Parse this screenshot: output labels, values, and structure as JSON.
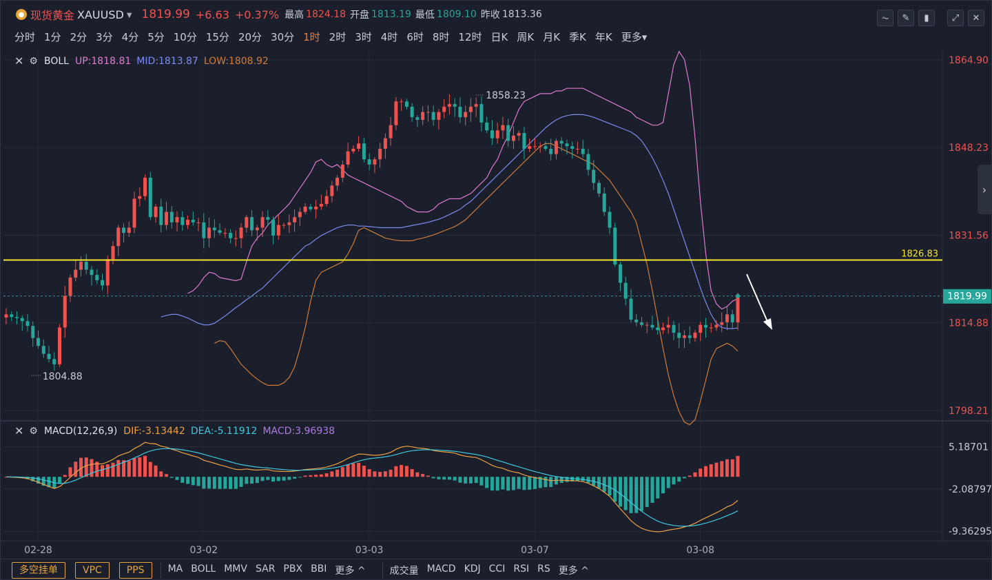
{
  "header": {
    "coin_icon": "gold-coin-icon",
    "name": "现货黄金",
    "symbol": "XAUUSD",
    "price": "1819.99",
    "change": "+6.63",
    "change_pct": "+0.37%",
    "high_label": "最高",
    "high": "1824.18",
    "open_label": "开盘",
    "open": "1813.19",
    "low_label": "最低",
    "low": "1809.10",
    "prev_label": "昨收",
    "prev": "1813.36"
  },
  "toolbar_icons": [
    "line-chart-icon",
    "draw-pen-icon",
    "candlestick-icon",
    "expand-icon",
    "close-icon"
  ],
  "periods": [
    "分时",
    "1分",
    "2分",
    "3分",
    "4分",
    "5分",
    "10分",
    "15分",
    "20分",
    "30分",
    "1时",
    "2时",
    "3时",
    "4时",
    "6时",
    "8时",
    "12时",
    "日K",
    "周K",
    "月K",
    "季K",
    "年K",
    "更多"
  ],
  "active_period": "1时",
  "boll": {
    "name": "BOLL",
    "up": "UP:1818.81",
    "mid": "MID:1813.87",
    "low": "LOW:1808.92"
  },
  "macd": {
    "name": "MACD(12,26,9)",
    "dif": "DIF:-3.13442",
    "dea": "DEA:-5.11912",
    "macd": "MACD:3.96938"
  },
  "colors": {
    "up": "#ef5350",
    "down": "#26a69a",
    "boll_up": "#e07ad0",
    "boll_mid": "#7b8cf0",
    "boll_low": "#d07b3a",
    "level_line": "#f5e52c",
    "dif": "#f0a040",
    "dea": "#40c8e0"
  },
  "bottom": {
    "buttons": [
      "多空挂单",
      "VPC",
      "PPS"
    ],
    "main_indicators": [
      "MA",
      "BOLL",
      "MMV",
      "SAR",
      "PBX",
      "BBI",
      "更多 ^"
    ],
    "sub_indicators": [
      "成交量",
      "MACD",
      "KDJ",
      "CCI",
      "RSI",
      "RS",
      "更多 ^"
    ]
  },
  "chart_data": {
    "type": "candlestick",
    "price_axis": {
      "ticks": [
        "1864.90",
        "1848.23",
        "1831.56",
        "1814.88",
        "1798.21"
      ],
      "min": 1798.21,
      "max": 1864.9
    },
    "macd_axis": {
      "ticks": [
        "5.18701",
        "-2.08797",
        "-9.36295"
      ]
    },
    "x_labels": [
      {
        "label": "02-28",
        "i": 6
      },
      {
        "label": "03-02",
        "i": 37
      },
      {
        "label": "03-03",
        "i": 68
      },
      {
        "label": "03-07",
        "i": 99
      },
      {
        "label": "03-08",
        "i": 130
      }
    ],
    "level_line": {
      "value": 1826.83,
      "label": "1826.83"
    },
    "current_price": {
      "value": 1819.99,
      "label": "1819.99"
    },
    "high_mark": {
      "value": 1858.23,
      "label": "1858.23",
      "i": 88
    },
    "low_mark": {
      "value": 1804.88,
      "label": "1804.88",
      "i": 5
    },
    "closes": [
      1816.5,
      1816.0,
      1815.8,
      1815.2,
      1814.3,
      1812.0,
      1810.5,
      1809.0,
      1808.0,
      1807.0,
      1814.0,
      1820.0,
      1823.5,
      1825.0,
      1826.5,
      1825.0,
      1824.0,
      1823.0,
      1822.0,
      1827.0,
      1829.5,
      1833.0,
      1832.0,
      1833.0,
      1838.5,
      1839.0,
      1842.5,
      1835.0,
      1837.0,
      1833.5,
      1836.0,
      1834.0,
      1835.0,
      1833.5,
      1834.5,
      1834.0,
      1834.0,
      1831.0,
      1833.0,
      1832.5,
      1832.0,
      1832.0,
      1831.0,
      1831.0,
      1833.0,
      1835.0,
      1832.5,
      1833.0,
      1835.0,
      1834.5,
      1831.5,
      1833.5,
      1833.5,
      1834.0,
      1835.0,
      1836.0,
      1837.0,
      1836.5,
      1837.0,
      1837.5,
      1839.0,
      1841.0,
      1842.5,
      1845.0,
      1847.5,
      1848.0,
      1849.0,
      1846.0,
      1845.0,
      1846.0,
      1848.0,
      1850.0,
      1852.5,
      1857.0,
      1857.0,
      1856.0,
      1854.0,
      1853.5,
      1855.0,
      1855.0,
      1853.5,
      1855.0,
      1856.0,
      1856.5,
      1856.0,
      1854.0,
      1855.0,
      1856.0,
      1856.5,
      1853.0,
      1851.5,
      1850.0,
      1851.5,
      1852.5,
      1849.5,
      1850.5,
      1851.0,
      1848.0,
      1848.5,
      1848.5,
      1848.5,
      1848.0,
      1847.0,
      1849.5,
      1849.0,
      1848.5,
      1848.0,
      1848.0,
      1847.0,
      1844.0,
      1841.5,
      1839.5,
      1836.0,
      1833.0,
      1826.0,
      1822.5,
      1819.5,
      1815.5,
      1815.0,
      1814.5,
      1814.5,
      1814.0,
      1813.5,
      1814.0,
      1814.5,
      1813.0,
      1812.0,
      1812.5,
      1812.0,
      1813.0,
      1814.5,
      1814.0,
      1814.0,
      1814.5,
      1815.0,
      1816.5,
      1815.0,
      1819.99
    ],
    "boll_up": [
      1820.5,
      1821.0,
      1822.0,
      1823.5,
      1824.5,
      1824.3,
      1823.5,
      1823.3,
      1823.1,
      1822.9,
      1823.2,
      1826.5,
      1829.5,
      1831.0,
      1832.0,
      1833.5,
      1834.5,
      1835.5,
      1836.5,
      1837.5,
      1839.0,
      1840.5,
      1842.0,
      1843.5,
      1845.5,
      1846.0,
      1845.0,
      1844.5,
      1845.0,
      1844.0,
      1843.0,
      1842.5,
      1842.0,
      1841.5,
      1841.0,
      1840.5,
      1840.0,
      1839.5,
      1839.0,
      1838.5,
      1838.0,
      1837.0,
      1836.5,
      1836.0,
      1836.0,
      1836.0,
      1836.5,
      1837.5,
      1838.0,
      1838.5,
      1838.5,
      1838.5,
      1839.0,
      1839.5,
      1840.5,
      1841.5,
      1842.5,
      1844.5,
      1846.0,
      1848.5,
      1850.5,
      1853.0,
      1855.5,
      1857.0,
      1857.5,
      1858.0,
      1858.5,
      1858.5,
      1858.5,
      1859.0,
      1859.0,
      1859.5,
      1859.5,
      1859.5,
      1859.5,
      1859.0,
      1858.5,
      1858.0,
      1857.5,
      1857.0,
      1856.5,
      1856.0,
      1855.5,
      1855.0,
      1854.0,
      1853.5,
      1853.0,
      1852.5,
      1852.5,
      1853.0,
      1858.5,
      1864.0,
      1866.5,
      1865.0,
      1860.0,
      1850.0,
      1838.0,
      1828.0,
      1821.0,
      1818.5,
      1817.5,
      1818.0,
      1819.0,
      1819.5
    ],
    "boll_mid": [
      1816.0,
      1816.3,
      1816.5,
      1816.5,
      1816.2,
      1815.8,
      1815.3,
      1814.8,
      1814.5,
      1814.5,
      1814.8,
      1815.5,
      1816.2,
      1817.0,
      1817.8,
      1818.5,
      1819.3,
      1820.0,
      1820.8,
      1821.5,
      1822.5,
      1823.5,
      1824.5,
      1825.5,
      1826.5,
      1827.5,
      1828.5,
      1829.5,
      1830.0,
      1830.8,
      1831.5,
      1832.0,
      1832.5,
      1833.0,
      1833.3,
      1833.5,
      1833.5,
      1833.3,
      1833.3,
      1833.2,
      1833.1,
      1833.0,
      1833.0,
      1833.0,
      1833.0,
      1833.0,
      1833.2,
      1833.4,
      1833.6,
      1833.8,
      1834.0,
      1834.3,
      1834.6,
      1835.0,
      1835.5,
      1836.0,
      1836.5,
      1837.3,
      1838.0,
      1839.0,
      1840.0,
      1841.0,
      1842.0,
      1843.0,
      1844.0,
      1845.0,
      1846.0,
      1847.0,
      1848.0,
      1849.0,
      1850.0,
      1851.0,
      1852.0,
      1852.8,
      1853.5,
      1854.0,
      1854.3,
      1854.5,
      1854.5,
      1854.5,
      1854.3,
      1854.0,
      1853.6,
      1853.2,
      1852.8,
      1852.4,
      1852.0,
      1851.6,
      1851.2,
      1850.5,
      1849.5,
      1848.0,
      1846.3,
      1844.3,
      1842.0,
      1839.5,
      1836.5,
      1833.5,
      1830.5,
      1827.5,
      1824.5,
      1821.5,
      1818.8,
      1816.5,
      1814.8,
      1814.0,
      1813.8,
      1813.8,
      1813.9
    ],
    "boll_low": [
      1811.0,
      1811.5,
      1811.3,
      1810.0,
      1808.5,
      1807.0,
      1806.0,
      1805.0,
      1804.2,
      1803.5,
      1803.0,
      1803.0,
      1803.0,
      1803.5,
      1804.5,
      1806.5,
      1810.0,
      1814.0,
      1819.0,
      1823.0,
      1824.5,
      1825.0,
      1825.5,
      1826.0,
      1826.5,
      1828.0,
      1830.0,
      1832.5,
      1833.0,
      1832.5,
      1832.0,
      1831.5,
      1831.0,
      1830.8,
      1830.6,
      1830.5,
      1830.5,
      1830.5,
      1830.8,
      1831.0,
      1831.3,
      1831.6,
      1832.0,
      1832.4,
      1832.8,
      1833.2,
      1833.8,
      1834.5,
      1835.5,
      1836.5,
      1837.5,
      1838.5,
      1839.5,
      1840.5,
      1841.5,
      1842.5,
      1843.5,
      1844.5,
      1845.5,
      1846.5,
      1847.5,
      1848.5,
      1849.0,
      1849.0,
      1848.5,
      1848.0,
      1847.5,
      1847.0,
      1846.5,
      1846.0,
      1845.5,
      1845.0,
      1844.0,
      1843.0,
      1842.0,
      1840.5,
      1839.0,
      1837.5,
      1836.0,
      1834.0,
      1830.0,
      1826.0,
      1821.0,
      1815.5,
      1810.0,
      1805.0,
      1801.0,
      1798.0,
      1796.0,
      1795.5,
      1796.5,
      1800.0,
      1804.0,
      1808.0,
      1810.0,
      1810.5,
      1811.0,
      1810.5,
      1809.5
    ]
  }
}
